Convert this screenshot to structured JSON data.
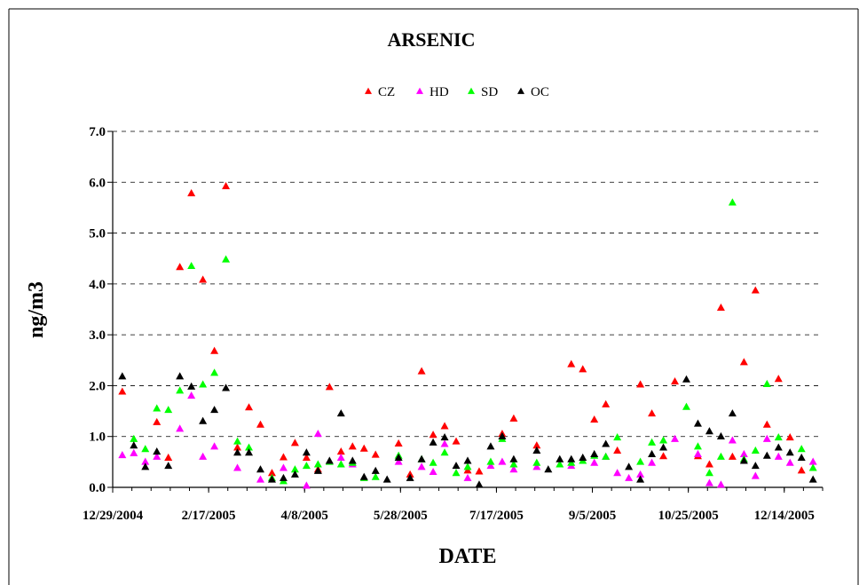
{
  "chart_data": {
    "type": "scatter",
    "title": "ARSENIC",
    "xlabel": "DATE",
    "ylabel": "ng/m3",
    "x_tick_labels": [
      "12/29/2004",
      "2/17/2005",
      "4/8/2005",
      "5/28/2005",
      "7/17/2005",
      "9/5/2005",
      "10/25/2005",
      "12/14/2005"
    ],
    "x_tick_dates": [
      "2004-12-29",
      "2005-02-17",
      "2005-04-08",
      "2005-05-28",
      "2005-07-17",
      "2005-09-05",
      "2005-10-25",
      "2005-12-14"
    ],
    "xlim": [
      "2004-12-29",
      "2006-01-03"
    ],
    "ylim": [
      0,
      7
    ],
    "y_ticks": [
      "0.0",
      "1.0",
      "2.0",
      "3.0",
      "4.0",
      "5.0",
      "6.0",
      "7.0"
    ],
    "y_tick_values": [
      0,
      1,
      2,
      3,
      4,
      5,
      6,
      7
    ],
    "grid": "horizontal dashed",
    "legend_position": "top-center",
    "marker": "triangle",
    "series": [
      {
        "name": "CZ",
        "color": "#ff0000",
        "points": [
          [
            "2005-01-03",
            1.88
          ],
          [
            "2005-01-21",
            1.28
          ],
          [
            "2005-01-27",
            0.58
          ],
          [
            "2005-02-02",
            4.33
          ],
          [
            "2005-02-08",
            5.78
          ],
          [
            "2005-02-14",
            4.08
          ],
          [
            "2005-02-20",
            2.68
          ],
          [
            "2005-02-26",
            5.92
          ],
          [
            "2005-03-04",
            0.78
          ],
          [
            "2005-03-10",
            1.57
          ],
          [
            "2005-03-16",
            1.23
          ],
          [
            "2005-03-22",
            0.28
          ],
          [
            "2005-03-28",
            0.59
          ],
          [
            "2005-04-03",
            0.87
          ],
          [
            "2005-04-09",
            0.58
          ],
          [
            "2005-04-15",
            0.35
          ],
          [
            "2005-04-21",
            1.97
          ],
          [
            "2005-04-27",
            0.7
          ],
          [
            "2005-05-03",
            0.8
          ],
          [
            "2005-05-09",
            0.76
          ],
          [
            "2005-05-15",
            0.64
          ],
          [
            "2005-05-27",
            0.86
          ],
          [
            "2005-06-02",
            0.25
          ],
          [
            "2005-06-08",
            2.28
          ],
          [
            "2005-06-14",
            1.03
          ],
          [
            "2005-06-20",
            1.2
          ],
          [
            "2005-06-26",
            0.9
          ],
          [
            "2005-07-02",
            0.33
          ],
          [
            "2005-07-08",
            0.31
          ],
          [
            "2005-07-20",
            1.05
          ],
          [
            "2005-07-26",
            1.35
          ],
          [
            "2005-08-07",
            0.82
          ],
          [
            "2005-08-25",
            2.42
          ],
          [
            "2005-08-31",
            2.32
          ],
          [
            "2005-09-06",
            1.33
          ],
          [
            "2005-09-12",
            1.63
          ],
          [
            "2005-09-18",
            0.72
          ],
          [
            "2005-09-30",
            2.02
          ],
          [
            "2005-10-06",
            1.45
          ],
          [
            "2005-10-12",
            0.61
          ],
          [
            "2005-10-18",
            2.08
          ],
          [
            "2005-10-30",
            0.61
          ],
          [
            "2005-11-05",
            0.45
          ],
          [
            "2005-11-11",
            3.53
          ],
          [
            "2005-11-17",
            0.6
          ],
          [
            "2005-11-23",
            2.46
          ],
          [
            "2005-11-29",
            3.87
          ],
          [
            "2005-12-05",
            1.23
          ],
          [
            "2005-12-11",
            2.13
          ],
          [
            "2005-12-17",
            0.98
          ],
          [
            "2005-12-23",
            0.33
          ]
        ]
      },
      {
        "name": "HD",
        "color": "#ff00ff",
        "points": [
          [
            "2005-01-03",
            0.63
          ],
          [
            "2005-01-09",
            0.67
          ],
          [
            "2005-01-15",
            0.5
          ],
          [
            "2005-01-21",
            0.6
          ],
          [
            "2005-02-02",
            1.15
          ],
          [
            "2005-02-08",
            1.8
          ],
          [
            "2005-02-14",
            0.6
          ],
          [
            "2005-02-20",
            0.8
          ],
          [
            "2005-03-04",
            0.38
          ],
          [
            "2005-03-16",
            0.15
          ],
          [
            "2005-03-28",
            0.38
          ],
          [
            "2005-04-09",
            0.03
          ],
          [
            "2005-04-15",
            1.05
          ],
          [
            "2005-04-27",
            0.58
          ],
          [
            "2005-05-03",
            0.45
          ],
          [
            "2005-05-27",
            0.5
          ],
          [
            "2005-06-08",
            0.4
          ],
          [
            "2005-06-14",
            0.3
          ],
          [
            "2005-06-20",
            0.85
          ],
          [
            "2005-07-02",
            0.18
          ],
          [
            "2005-07-14",
            0.42
          ],
          [
            "2005-07-20",
            0.5
          ],
          [
            "2005-07-26",
            0.35
          ],
          [
            "2005-08-07",
            0.4
          ],
          [
            "2005-08-25",
            0.42
          ],
          [
            "2005-09-06",
            0.48
          ],
          [
            "2005-09-12",
            0.6
          ],
          [
            "2005-09-18",
            0.28
          ],
          [
            "2005-09-24",
            0.18
          ],
          [
            "2005-09-30",
            0.25
          ],
          [
            "2005-10-06",
            0.48
          ],
          [
            "2005-10-18",
            0.95
          ],
          [
            "2005-10-30",
            0.65
          ],
          [
            "2005-11-05",
            0.08
          ],
          [
            "2005-11-11",
            0.05
          ],
          [
            "2005-11-17",
            0.92
          ],
          [
            "2005-11-23",
            0.65
          ],
          [
            "2005-11-29",
            0.22
          ],
          [
            "2005-12-05",
            0.95
          ],
          [
            "2005-12-11",
            0.6
          ],
          [
            "2005-12-17",
            0.48
          ],
          [
            "2005-12-29",
            0.5
          ]
        ]
      },
      {
        "name": "SD",
        "color": "#00ff00",
        "points": [
          [
            "2005-01-09",
            0.95
          ],
          [
            "2005-01-15",
            0.75
          ],
          [
            "2005-01-21",
            1.55
          ],
          [
            "2005-01-27",
            1.52
          ],
          [
            "2005-02-02",
            1.9
          ],
          [
            "2005-02-08",
            4.35
          ],
          [
            "2005-02-14",
            2.02
          ],
          [
            "2005-02-20",
            2.25
          ],
          [
            "2005-02-26",
            4.48
          ],
          [
            "2005-03-04",
            0.9
          ],
          [
            "2005-03-10",
            0.78
          ],
          [
            "2005-03-22",
            0.18
          ],
          [
            "2005-03-28",
            0.12
          ],
          [
            "2005-04-03",
            0.35
          ],
          [
            "2005-04-09",
            0.42
          ],
          [
            "2005-04-15",
            0.45
          ],
          [
            "2005-04-21",
            0.5
          ],
          [
            "2005-04-27",
            0.45
          ],
          [
            "2005-05-03",
            0.48
          ],
          [
            "2005-05-09",
            0.18
          ],
          [
            "2005-05-15",
            0.2
          ],
          [
            "2005-05-27",
            0.62
          ],
          [
            "2005-06-08",
            0.55
          ],
          [
            "2005-06-14",
            0.48
          ],
          [
            "2005-06-20",
            0.68
          ],
          [
            "2005-06-26",
            0.28
          ],
          [
            "2005-07-02",
            0.4
          ],
          [
            "2005-07-14",
            0.5
          ],
          [
            "2005-07-20",
            0.95
          ],
          [
            "2005-07-26",
            0.45
          ],
          [
            "2005-08-07",
            0.48
          ],
          [
            "2005-08-19",
            0.45
          ],
          [
            "2005-08-25",
            0.48
          ],
          [
            "2005-08-31",
            0.52
          ],
          [
            "2005-09-06",
            0.62
          ],
          [
            "2005-09-12",
            0.6
          ],
          [
            "2005-09-18",
            0.98
          ],
          [
            "2005-09-30",
            0.5
          ],
          [
            "2005-10-06",
            0.88
          ],
          [
            "2005-10-12",
            0.92
          ],
          [
            "2005-10-24",
            1.58
          ],
          [
            "2005-10-30",
            0.8
          ],
          [
            "2005-11-05",
            0.28
          ],
          [
            "2005-11-11",
            0.6
          ],
          [
            "2005-11-17",
            5.6
          ],
          [
            "2005-11-23",
            0.55
          ],
          [
            "2005-11-29",
            0.72
          ],
          [
            "2005-12-05",
            2.03
          ],
          [
            "2005-12-11",
            0.98
          ],
          [
            "2005-12-23",
            0.75
          ],
          [
            "2005-12-29",
            0.38
          ]
        ]
      },
      {
        "name": "OC",
        "color": "#000000",
        "points": [
          [
            "2005-01-03",
            2.18
          ],
          [
            "2005-01-09",
            0.82
          ],
          [
            "2005-01-15",
            0.4
          ],
          [
            "2005-01-21",
            0.7
          ],
          [
            "2005-01-27",
            0.42
          ],
          [
            "2005-02-02",
            2.18
          ],
          [
            "2005-02-08",
            1.98
          ],
          [
            "2005-02-14",
            1.3
          ],
          [
            "2005-02-20",
            1.52
          ],
          [
            "2005-02-26",
            1.95
          ],
          [
            "2005-03-04",
            0.68
          ],
          [
            "2005-03-10",
            0.68
          ],
          [
            "2005-03-16",
            0.35
          ],
          [
            "2005-03-22",
            0.15
          ],
          [
            "2005-03-28",
            0.18
          ],
          [
            "2005-04-03",
            0.25
          ],
          [
            "2005-04-09",
            0.68
          ],
          [
            "2005-04-15",
            0.32
          ],
          [
            "2005-04-21",
            0.52
          ],
          [
            "2005-04-27",
            1.45
          ],
          [
            "2005-05-03",
            0.52
          ],
          [
            "2005-05-09",
            0.2
          ],
          [
            "2005-05-15",
            0.32
          ],
          [
            "2005-05-21",
            0.15
          ],
          [
            "2005-05-27",
            0.58
          ],
          [
            "2005-06-02",
            0.18
          ],
          [
            "2005-06-08",
            0.55
          ],
          [
            "2005-06-14",
            0.88
          ],
          [
            "2005-06-20",
            0.98
          ],
          [
            "2005-06-26",
            0.42
          ],
          [
            "2005-07-02",
            0.52
          ],
          [
            "2005-07-08",
            0.05
          ],
          [
            "2005-07-14",
            0.8
          ],
          [
            "2005-07-20",
            1.0
          ],
          [
            "2005-07-26",
            0.55
          ],
          [
            "2005-08-07",
            0.72
          ],
          [
            "2005-08-13",
            0.35
          ],
          [
            "2005-08-19",
            0.55
          ],
          [
            "2005-08-25",
            0.55
          ],
          [
            "2005-08-31",
            0.58
          ],
          [
            "2005-09-06",
            0.65
          ],
          [
            "2005-09-12",
            0.85
          ],
          [
            "2005-09-24",
            0.4
          ],
          [
            "2005-09-30",
            0.15
          ],
          [
            "2005-10-06",
            0.65
          ],
          [
            "2005-10-12",
            0.78
          ],
          [
            "2005-10-24",
            2.12
          ],
          [
            "2005-10-30",
            1.25
          ],
          [
            "2005-11-05",
            1.1
          ],
          [
            "2005-11-11",
            1.0
          ],
          [
            "2005-11-17",
            1.45
          ],
          [
            "2005-11-23",
            0.52
          ],
          [
            "2005-11-29",
            0.42
          ],
          [
            "2005-12-05",
            0.62
          ],
          [
            "2005-12-11",
            0.78
          ],
          [
            "2005-12-17",
            0.68
          ],
          [
            "2005-12-23",
            0.58
          ],
          [
            "2005-12-29",
            0.15
          ]
        ]
      }
    ]
  }
}
